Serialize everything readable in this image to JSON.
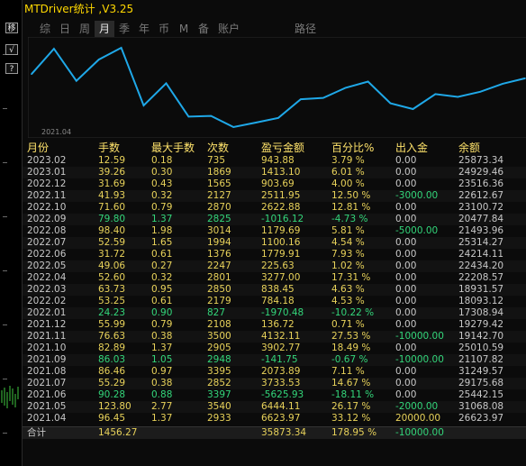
{
  "title": "MTDriver统计 ,V3.25",
  "side_buttons": [
    {
      "label": "移",
      "icon": "move-icon"
    },
    {
      "label": "√",
      "icon": "check-icon"
    },
    {
      "label": "?",
      "icon": "help-icon"
    }
  ],
  "tabs": [
    "综",
    "日",
    "周",
    "月",
    "季",
    "年",
    "币",
    "M",
    "备",
    "账户"
  ],
  "active_tab": "月",
  "route_label": "路径",
  "chart": {
    "start_label": "2021.04",
    "line_color": "#1fa8e8",
    "balance_series": [
      26623.97,
      31068.08,
      25442.15,
      29175.68,
      31249.57,
      21107.82,
      25010.59,
      19142.7,
      19279.42,
      17308.94,
      18093.12,
      18931.57,
      22208.57,
      22434.2,
      24214.11,
      25314.27,
      21493.96,
      20477.84,
      23100.72,
      22612.67,
      23516.36,
      24929.46,
      25873.34
    ]
  },
  "columns": [
    "月份",
    "手数",
    "最大手数",
    "次数",
    "盈亏金额",
    "百分比%",
    "出入金",
    "余额"
  ],
  "rows": [
    {
      "month": "2023.02",
      "lots": "12.59",
      "max": "0.18",
      "count": "735",
      "pnl": "943.88",
      "pct": "3.79 %",
      "flow": "0.00",
      "bal": "25873.34",
      "green": false
    },
    {
      "month": "2023.01",
      "lots": "39.26",
      "max": "0.30",
      "count": "1869",
      "pnl": "1413.10",
      "pct": "6.01 %",
      "flow": "0.00",
      "bal": "24929.46",
      "green": false
    },
    {
      "month": "2022.12",
      "lots": "31.69",
      "max": "0.43",
      "count": "1565",
      "pnl": "903.69",
      "pct": "4.00 %",
      "flow": "0.00",
      "bal": "23516.36",
      "green": false
    },
    {
      "month": "2022.11",
      "lots": "41.93",
      "max": "0.32",
      "count": "2127",
      "pnl": "2511.95",
      "pct": "12.50 %",
      "flow": "-3000.00",
      "bal": "22612.67",
      "green": false
    },
    {
      "month": "2022.10",
      "lots": "71.60",
      "max": "0.79",
      "count": "2870",
      "pnl": "2622.88",
      "pct": "12.81 %",
      "flow": "0.00",
      "bal": "23100.72",
      "green": false
    },
    {
      "month": "2022.09",
      "lots": "79.80",
      "max": "1.37",
      "count": "2825",
      "pnl": "-1016.12",
      "pct": "-4.73 %",
      "flow": "0.00",
      "bal": "20477.84",
      "green": true
    },
    {
      "month": "2022.08",
      "lots": "98.40",
      "max": "1.98",
      "count": "3014",
      "pnl": "1179.69",
      "pct": "5.81 %",
      "flow": "-5000.00",
      "bal": "21493.96",
      "green": false
    },
    {
      "month": "2022.07",
      "lots": "52.59",
      "max": "1.65",
      "count": "1994",
      "pnl": "1100.16",
      "pct": "4.54 %",
      "flow": "0.00",
      "bal": "25314.27",
      "green": false
    },
    {
      "month": "2022.06",
      "lots": "31.72",
      "max": "0.61",
      "count": "1376",
      "pnl": "1779.91",
      "pct": "7.93 %",
      "flow": "0.00",
      "bal": "24214.11",
      "green": false
    },
    {
      "month": "2022.05",
      "lots": "49.06",
      "max": "0.27",
      "count": "2247",
      "pnl": "225.63",
      "pct": "1.02 %",
      "flow": "0.00",
      "bal": "22434.20",
      "green": false
    },
    {
      "month": "2022.04",
      "lots": "52.60",
      "max": "0.32",
      "count": "2801",
      "pnl": "3277.00",
      "pct": "17.31 %",
      "flow": "0.00",
      "bal": "22208.57",
      "green": false
    },
    {
      "month": "2022.03",
      "lots": "63.73",
      "max": "0.95",
      "count": "2850",
      "pnl": "838.45",
      "pct": "4.63 %",
      "flow": "0.00",
      "bal": "18931.57",
      "green": false
    },
    {
      "month": "2022.02",
      "lots": "53.25",
      "max": "0.61",
      "count": "2179",
      "pnl": "784.18",
      "pct": "4.53 %",
      "flow": "0.00",
      "bal": "18093.12",
      "green": false
    },
    {
      "month": "2022.01",
      "lots": "24.23",
      "max": "0.90",
      "count": "827",
      "pnl": "-1970.48",
      "pct": "-10.22 %",
      "flow": "0.00",
      "bal": "17308.94",
      "green": true
    },
    {
      "month": "2021.12",
      "lots": "55.99",
      "max": "0.79",
      "count": "2108",
      "pnl": "136.72",
      "pct": "0.71 %",
      "flow": "0.00",
      "bal": "19279.42",
      "green": false
    },
    {
      "month": "2021.11",
      "lots": "76.63",
      "max": "0.38",
      "count": "3500",
      "pnl": "4132.11",
      "pct": "27.53 %",
      "flow": "-10000.00",
      "bal": "19142.70",
      "green": false
    },
    {
      "month": "2021.10",
      "lots": "82.89",
      "max": "1.37",
      "count": "2905",
      "pnl": "3902.77",
      "pct": "18.49 %",
      "flow": "0.00",
      "bal": "25010.59",
      "green": false
    },
    {
      "month": "2021.09",
      "lots": "86.03",
      "max": "1.05",
      "count": "2948",
      "pnl": "-141.75",
      "pct": "-0.67 %",
      "flow": "-10000.00",
      "bal": "21107.82",
      "green": true
    },
    {
      "month": "2021.08",
      "lots": "86.46",
      "max": "0.97",
      "count": "3395",
      "pnl": "2073.89",
      "pct": "7.11 %",
      "flow": "0.00",
      "bal": "31249.57",
      "green": false
    },
    {
      "month": "2021.07",
      "lots": "55.29",
      "max": "0.38",
      "count": "2852",
      "pnl": "3733.53",
      "pct": "14.67 %",
      "flow": "0.00",
      "bal": "29175.68",
      "green": false
    },
    {
      "month": "2021.06",
      "lots": "90.28",
      "max": "0.88",
      "count": "3397",
      "pnl": "-5625.93",
      "pct": "-18.11 %",
      "flow": "0.00",
      "bal": "25442.15",
      "green": true
    },
    {
      "month": "2021.05",
      "lots": "123.80",
      "max": "2.77",
      "count": "3540",
      "pnl": "6444.11",
      "pct": "26.17 %",
      "flow": "-2000.00",
      "bal": "31068.08",
      "green": false
    },
    {
      "month": "2021.04",
      "lots": "96.45",
      "max": "1.37",
      "count": "2933",
      "pnl": "6623.97",
      "pct": "33.12 %",
      "flow": "20000.00",
      "bal": "26623.97",
      "green": false
    }
  ],
  "total": {
    "label": "合计",
    "lots": "1456.27",
    "pnl": "35873.34",
    "pct": "178.95 %",
    "flow": "-10000.00"
  }
}
